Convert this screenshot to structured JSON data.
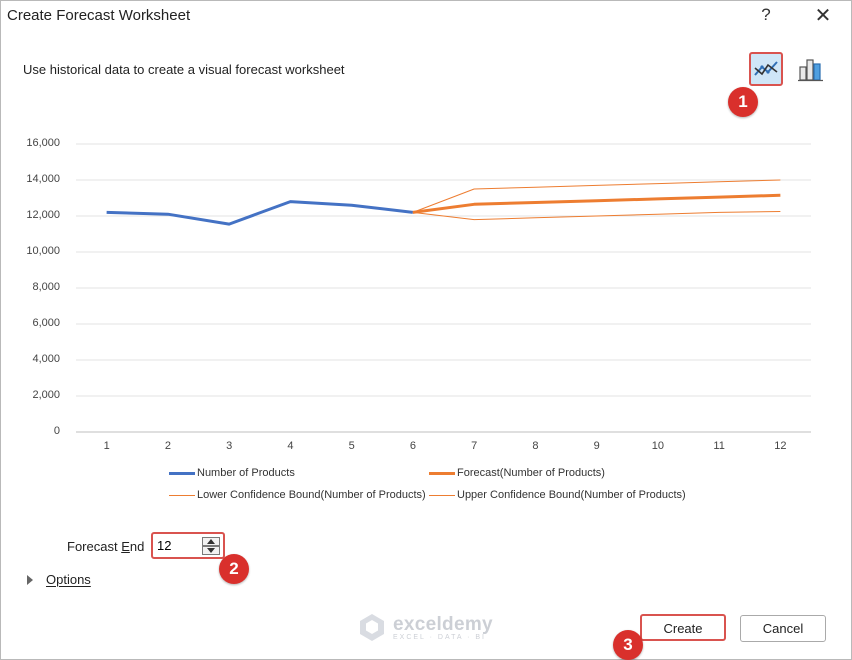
{
  "window": {
    "title": "Create Forecast Worksheet",
    "help_label": "?",
    "close_label": "✕"
  },
  "description": "Use historical data to create a visual forecast worksheet",
  "chart_type_buttons": [
    {
      "name": "line-chart",
      "selected": true
    },
    {
      "name": "column-chart",
      "selected": false
    }
  ],
  "annotations": [
    "1",
    "2",
    "3"
  ],
  "chart_data": {
    "type": "line",
    "x": [
      1,
      2,
      3,
      4,
      5,
      6,
      7,
      8,
      9,
      10,
      11,
      12
    ],
    "ylim": [
      0,
      16000
    ],
    "yticks": [
      "0",
      "2,000",
      "4,000",
      "6,000",
      "8,000",
      "10,000",
      "12,000",
      "14,000",
      "16,000"
    ],
    "grid": true,
    "legend_position": "bottom",
    "series": [
      {
        "name": "Number of Products",
        "color": "#4472c4",
        "x": [
          1,
          2,
          3,
          4,
          5,
          6
        ],
        "values": [
          12200,
          12100,
          11550,
          12800,
          12600,
          12200
        ]
      },
      {
        "name": "Forecast(Number of Products)",
        "color": "#ed7d31",
        "x": [
          6,
          7,
          8,
          9,
          10,
          11,
          12
        ],
        "values": [
          12200,
          12650,
          12750,
          12850,
          12950,
          13050,
          13150
        ]
      },
      {
        "name": "Lower Confidence Bound(Number of Products)",
        "color": "#ed7d31",
        "x": [
          6,
          7,
          8,
          9,
          10,
          11,
          12
        ],
        "values": [
          12200,
          11800,
          11900,
          12000,
          12100,
          12200,
          12250
        ]
      },
      {
        "name": "Upper Confidence Bound(Number of Products)",
        "color": "#ed7d31",
        "x": [
          6,
          7,
          8,
          9,
          10,
          11,
          12
        ],
        "values": [
          12200,
          13500,
          13600,
          13700,
          13800,
          13900,
          14000
        ]
      }
    ]
  },
  "forecast_end": {
    "label": "Forecast End",
    "label_underline_char": "E",
    "value": "12"
  },
  "options": {
    "label": "Options"
  },
  "buttons": {
    "create": "Create",
    "cancel": "Cancel"
  },
  "watermark": {
    "name": "exceldemy",
    "tagline": "EXCEL · DATA · BI"
  }
}
